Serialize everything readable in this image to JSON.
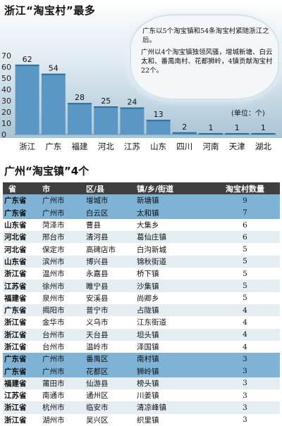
{
  "title1": "浙江“淘宝村”最多",
  "callout": {
    "line1": "广东以5个淘宝镇和54条淘宝村紧随浙江之后。",
    "line2": "广州以4个淘宝镇独领风骚，增城新塘、白云太和、番禺南村、花都狮岭，4镇贡献淘宝村22个。"
  },
  "unit_label": "(单位：个)",
  "title2": "广州“淘宝镇”4个",
  "colors": {
    "bar": "#5a97c4",
    "bar_top": "#2f6f9f",
    "highlight_row": "#7fb3d6",
    "stripe_row": "#e4edf2",
    "header_row": "#3f3f3f"
  },
  "chart_data": {
    "type": "bar",
    "title": "浙江“淘宝村”最多",
    "categories": [
      "浙江",
      "广东",
      "福建",
      "河北",
      "江苏",
      "山东",
      "四川",
      "河南",
      "天津",
      "湖北"
    ],
    "values": [
      62,
      54,
      28,
      25,
      24,
      13,
      2,
      1,
      1,
      1
    ],
    "ylim": [
      0,
      70
    ],
    "yticks": [
      0,
      10,
      20,
      30,
      40,
      50,
      60,
      70
    ],
    "grid": false,
    "unit": "(单位：个)"
  },
  "table": {
    "headers": [
      "省",
      "市",
      "区/县",
      "镇/乡/街道",
      "淘宝村数量"
    ],
    "rows": [
      [
        "广东省",
        "广州市",
        "增城市",
        "新塘镇",
        "9"
      ],
      [
        "广东省",
        "广州市",
        "白云区",
        "太和镇",
        "7"
      ],
      [
        "山东省",
        "菏泽市",
        "曹县",
        "大集乡",
        "6"
      ],
      [
        "河北省",
        "邢台市",
        "清河县",
        "葛仙庄镇",
        "6"
      ],
      [
        "河北省",
        "保定市",
        "高碑店市",
        "白沟新城",
        "5"
      ],
      [
        "山东省",
        "滨州市",
        "博兴县",
        "锦秋街道",
        "5"
      ],
      [
        "浙江省",
        "温州市",
        "永嘉县",
        "桥下镇",
        "5"
      ],
      [
        "江苏省",
        "徐州市",
        "睢宁县",
        "沙集镇",
        "5"
      ],
      [
        "福建省",
        "泉州市",
        "安溪县",
        "尚卿乡",
        "5"
      ],
      [
        "广东省",
        "揭阳市",
        "普宁市",
        "占陇镇",
        "4"
      ],
      [
        "浙江省",
        "金华市",
        "义乌市",
        "江东街道",
        "4"
      ],
      [
        "浙江省",
        "台州市",
        "天台县",
        "坦头镇",
        "4"
      ],
      [
        "浙江省",
        "台州市",
        "温岭市",
        "泽国镇",
        "4"
      ],
      [
        "广东省",
        "广州市",
        "番禺区",
        "南村镇",
        "3"
      ],
      [
        "广东省",
        "广州市",
        "花都区",
        "狮岭镇",
        "3"
      ],
      [
        "福建省",
        "莆田市",
        "仙游县",
        "榜头镇",
        "3"
      ],
      [
        "江苏省",
        "南通市",
        "通州区",
        "川姜镇",
        "3"
      ],
      [
        "浙江省",
        "杭州市",
        "临安市",
        "清凉峰镇",
        "3"
      ],
      [
        "浙江省",
        "湖州市",
        "吴兴区",
        "织里镇",
        "3"
      ]
    ],
    "highlight_rows": [
      0,
      1,
      13,
      14
    ]
  }
}
